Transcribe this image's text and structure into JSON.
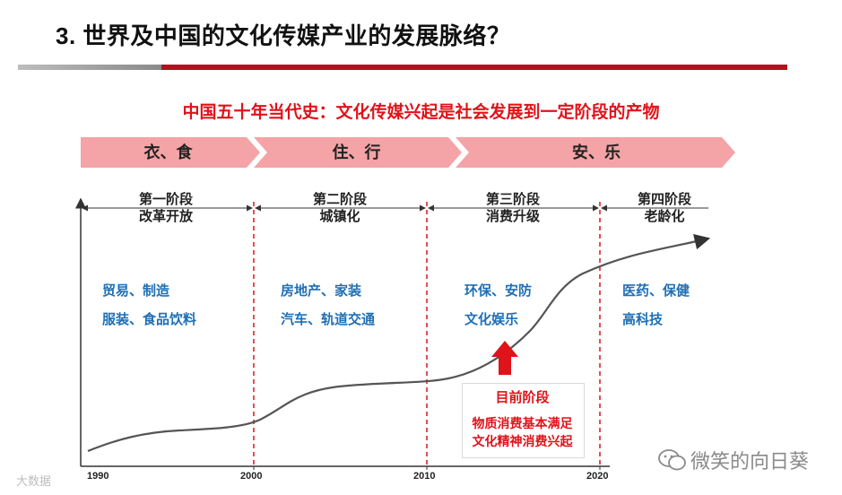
{
  "title": "3. 世界及中国的文化传媒产业的发展脉络？",
  "subtitle": "中国五十年当代史：文化传媒兴起是社会发展到一定阶段的产物",
  "needs": [
    "衣、食",
    "住、行",
    "安、乐"
  ],
  "stages": [
    {
      "line1": "第一阶段",
      "line2": "改革开放"
    },
    {
      "line1": "第二阶段",
      "line2": "城镇化"
    },
    {
      "line1": "第三阶段",
      "line2": "消费升级"
    },
    {
      "line1": "第四阶段",
      "line2": "老龄化"
    }
  ],
  "industries": [
    [
      "贸易、制造",
      "服装、食品饮料"
    ],
    [
      "房地产、家装",
      "汽车、轨道交通"
    ],
    [
      "环保、安防",
      "文化娱乐"
    ],
    [
      "医药、保健",
      "高科技"
    ]
  ],
  "ticks": [
    "1990",
    "2000",
    "2010",
    "2020"
  ],
  "current": {
    "label": "目前阶段",
    "desc_line1": "物质消费基本满足",
    "desc_line2": "文化精神消费兴起"
  },
  "watermark_right": "微笑的向日葵",
  "watermark_left": "大数据",
  "colors": {
    "accent_red": "#e0121a",
    "chevron": "#f4a3a6",
    "industry_blue": "#1f6fb5",
    "rule_red": "#b0131e"
  }
}
